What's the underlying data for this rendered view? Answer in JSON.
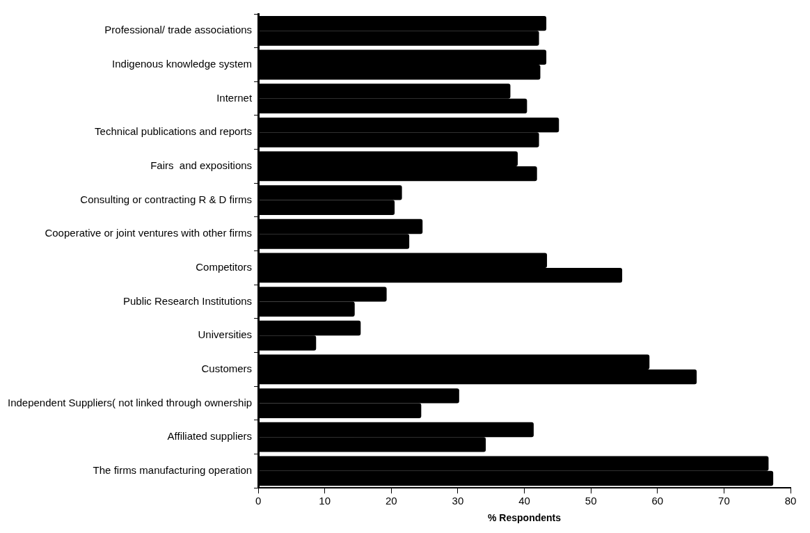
{
  "chart_data": {
    "type": "bar",
    "orientation": "horizontal",
    "xlabel": "% Respondents",
    "categories": [
      "Professional/ trade associations",
      "Indigenous knowledge system",
      "Internet",
      "Technical publications and reports",
      "Fairs  and expositions",
      "Consulting or contracting R & D firms",
      "Cooperative or joint ventures with other firms",
      "Competitors",
      "Public Research Institutions",
      "Universities",
      "Customers",
      "Independent Suppliers( not linked through ownership",
      "Affiliated suppliers",
      "The firms manufacturing operation"
    ],
    "series": [
      {
        "color": "#000000",
        "values": [
          43.3,
          43.3,
          37.9,
          45.2,
          39.0,
          21.6,
          24.7,
          43.4,
          19.3,
          15.4,
          58.8,
          30.2,
          41.4,
          76.7
        ]
      },
      {
        "color": "#000000",
        "values": [
          42.2,
          42.4,
          40.4,
          42.2,
          41.9,
          20.5,
          22.7,
          54.7,
          14.5,
          8.7,
          65.9,
          24.5,
          34.2,
          77.4
        ]
      }
    ],
    "xlim": [
      0,
      80
    ],
    "xticks": [
      0,
      10,
      20,
      30,
      40,
      50,
      60,
      70,
      80
    ],
    "grid": false,
    "legend": false
  }
}
